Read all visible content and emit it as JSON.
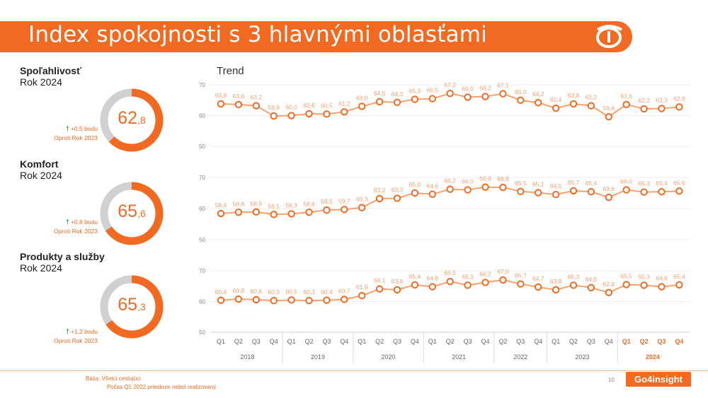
{
  "title": "Index spokojnosti s 3 hlavnými oblasťami",
  "trend_label": "Trend",
  "colors": {
    "accent": "#f26a21",
    "gray": "#d0d0d0",
    "up": "#2e9e4a"
  },
  "sections": [
    {
      "name": "Spoľahlivosť",
      "year": "Rok 2024",
      "value_int": "62",
      "value_dec": ",8",
      "score": 62.8,
      "delta": "+0,5 bodu",
      "compare": "Oproti Rok 2023"
    },
    {
      "name": "Komfort",
      "year": "Rok 2024",
      "value_int": "65",
      "value_dec": ",6",
      "score": 65.6,
      "delta": "+0,8 bodu",
      "compare": "Oproti Rok 2023"
    },
    {
      "name": "Produkty a služby",
      "year": "Rok 2024",
      "value_int": "65",
      "value_dec": ",3",
      "score": 65.3,
      "delta": "+1,2 bodu",
      "compare": "Oproti Rok 2023"
    }
  ],
  "chart_data": {
    "type": "line",
    "categories": [
      "Q1",
      "Q2",
      "Q3",
      "Q4",
      "Q1",
      "Q2",
      "Q3",
      "Q4",
      "Q1",
      "Q2",
      "Q3",
      "Q4",
      "Q1",
      "Q2",
      "Q3",
      "Q4",
      "Q2",
      "Q3",
      "Q4",
      "Q1",
      "Q2",
      "Q3",
      "Q4",
      "Q1",
      "Q2",
      "Q3",
      "Q4"
    ],
    "year_groups": [
      {
        "label": "2018",
        "count": 4
      },
      {
        "label": "2019",
        "count": 4
      },
      {
        "label": "2020",
        "count": 4
      },
      {
        "label": "2021",
        "count": 4
      },
      {
        "label": "2022",
        "count": 3
      },
      {
        "label": "2023",
        "count": 4
      },
      {
        "label": "2024",
        "count": 4,
        "highlight": true
      }
    ],
    "ylim": [
      50,
      70
    ],
    "yticks": [
      "70",
      "60",
      "50"
    ],
    "series": [
      {
        "values": [
          63.8,
          63.6,
          63.2,
          59.9,
          60.0,
          60.6,
          60.5,
          61.2,
          63.0,
          64.5,
          64.3,
          65.3,
          65.5,
          67.2,
          66.0,
          66.2,
          67.1,
          65.0,
          64.2,
          62.4,
          63.8,
          63.2,
          59.6,
          63.6,
          62.2,
          62.3,
          62.8
        ],
        "labels": [
          "63,8",
          "63,6",
          "63,2",
          "59,9",
          "60,0",
          "60,6",
          "60,5",
          "61,2",
          "63,0",
          "64,5",
          "64,3",
          "65,3",
          "65,5",
          "67,2",
          "66,0",
          "66,2",
          "67,1",
          "65,0",
          "64,2",
          "62,4",
          "63,8",
          "63,2",
          "59,6",
          "63,6",
          "62,2",
          "62,3",
          "62,8"
        ]
      },
      {
        "values": [
          58.4,
          58.8,
          58.9,
          58.1,
          58.3,
          58.8,
          59.5,
          59.7,
          60.3,
          63.2,
          63.3,
          65.0,
          64.6,
          66.2,
          66.0,
          66.9,
          66.8,
          65.5,
          65.1,
          64.5,
          65.7,
          65.4,
          63.6,
          66.0,
          65.3,
          65.4,
          65.6
        ],
        "labels": [
          "58,4",
          "58,8",
          "58,9",
          "58,1",
          "58,3",
          "58,8",
          "59,5",
          "59,7",
          "60,3",
          "63,2",
          "63,3",
          "65,0",
          "64,6",
          "66,2",
          "66,0",
          "66,9",
          "66,8",
          "65,5",
          "65,1",
          "64,5",
          "65,7",
          "65,4",
          "63,6",
          "66,0",
          "65,3",
          "65,4",
          "65,6"
        ]
      },
      {
        "values": [
          60.4,
          60.8,
          60.6,
          60.3,
          60.5,
          60.3,
          60.4,
          60.7,
          61.9,
          64.1,
          63.8,
          65.4,
          64.8,
          66.5,
          65.3,
          66.2,
          67.0,
          65.7,
          64.7,
          63.8,
          65.3,
          64.5,
          62.9,
          65.5,
          65.3,
          64.8,
          65.4
        ],
        "labels": [
          "60,4",
          "60,8",
          "60,6",
          "60,3",
          "60,5",
          "60,3",
          "60,4",
          "60,7",
          "61,9",
          "64,1",
          "63,8",
          "65,4",
          "64,8",
          "66,5",
          "65,3",
          "66,2",
          "67,0",
          "65,7",
          "64,7",
          "63,8",
          "65,3",
          "64,5",
          "62,9",
          "65,5",
          "65,3",
          "64,8",
          "65,4"
        ]
      }
    ]
  },
  "footer": {
    "base": "Báza: Všetci cestujúci",
    "note": "Počas Q1 2022 prieskum nebol realizovaný",
    "page": "10",
    "brand": "Go4insight"
  }
}
